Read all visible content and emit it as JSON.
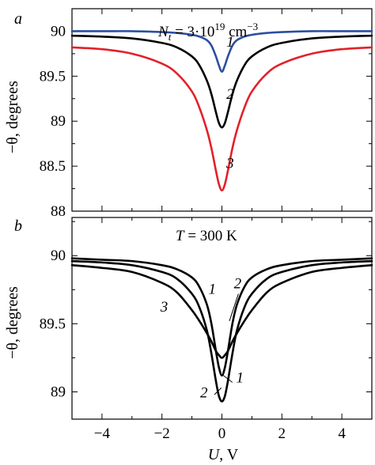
{
  "figure": {
    "shared_xlabel_italic": "U",
    "shared_xlabel_rest": ", V"
  },
  "chart_data": [
    {
      "type": "line",
      "panel_label": "a",
      "annotation": {
        "symbol": "N",
        "subscript": "t",
        "equals": " = 3·10",
        "exponent": "19",
        "unit": " cm",
        "unit_exponent": "−3"
      },
      "xlabel": "",
      "ylabel": "−θ, degrees",
      "xlim": [
        -5,
        5
      ],
      "ylim": [
        88,
        90.25
      ],
      "x_ticks": [
        -4,
        -2,
        0,
        2,
        4
      ],
      "y_ticks": [
        88,
        88.5,
        89,
        89.5,
        90
      ],
      "y_tick_labels": [
        "88",
        "88.5",
        "89",
        "89.5",
        "90"
      ],
      "show_x_tick_labels": false,
      "grid": false,
      "series": [
        {
          "name": "1",
          "color": "#2a4fa0",
          "x": [
            -5,
            -4,
            -3,
            -2,
            -1.5,
            -1,
            -0.75,
            -0.5,
            -0.35,
            -0.2,
            -0.1,
            0,
            0.1,
            0.2,
            0.35,
            0.5,
            0.75,
            1,
            1.5,
            2,
            3,
            4,
            5
          ],
          "y": [
            90.0,
            90.0,
            90.0,
            89.99,
            89.98,
            89.96,
            89.94,
            89.9,
            89.84,
            89.72,
            89.62,
            89.55,
            89.62,
            89.72,
            89.84,
            89.9,
            89.94,
            89.96,
            89.98,
            89.99,
            90.0,
            90.0,
            90.0
          ],
          "label_position": [
            0.15,
            89.83
          ]
        },
        {
          "name": "2",
          "color": "#000000",
          "x": [
            -5,
            -4,
            -3,
            -2,
            -1.5,
            -1,
            -0.75,
            -0.5,
            -0.35,
            -0.2,
            -0.1,
            0,
            0.1,
            0.2,
            0.35,
            0.5,
            0.75,
            1,
            1.5,
            2,
            3,
            4,
            5
          ],
          "y": [
            89.95,
            89.94,
            89.92,
            89.87,
            89.82,
            89.72,
            89.62,
            89.45,
            89.3,
            89.1,
            88.98,
            88.93,
            88.98,
            89.1,
            89.3,
            89.45,
            89.62,
            89.72,
            89.82,
            89.87,
            89.92,
            89.94,
            89.95
          ],
          "label_position": [
            0.15,
            89.25
          ]
        },
        {
          "name": "3",
          "color": "#e3202a",
          "x": [
            -5,
            -4,
            -3,
            -2,
            -1.5,
            -1,
            -0.75,
            -0.5,
            -0.35,
            -0.2,
            -0.1,
            0,
            0.1,
            0.2,
            0.35,
            0.5,
            0.75,
            1,
            1.5,
            2,
            3,
            4,
            5
          ],
          "y": [
            89.82,
            89.8,
            89.75,
            89.64,
            89.53,
            89.33,
            89.15,
            88.9,
            88.7,
            88.45,
            88.3,
            88.23,
            88.3,
            88.45,
            88.7,
            88.9,
            89.15,
            89.33,
            89.53,
            89.64,
            89.75,
            89.8,
            89.82
          ],
          "label_position": [
            0.15,
            88.48
          ]
        }
      ]
    },
    {
      "type": "line",
      "panel_label": "b",
      "annotation": {
        "symbol": "T",
        "equals": " = 300 K"
      },
      "xlabel": "U, V",
      "ylabel": "−θ, degrees",
      "xlim": [
        -5,
        5
      ],
      "ylim": [
        88.8,
        90.28
      ],
      "x_ticks": [
        -4,
        -2,
        0,
        2,
        4
      ],
      "x_tick_labels": [
        "−4",
        "−2",
        "0",
        "2",
        "4"
      ],
      "y_ticks": [
        89,
        89.5,
        90
      ],
      "y_tick_labels": [
        "89",
        "89.5",
        "90"
      ],
      "show_x_tick_labels": true,
      "grid": false,
      "series": [
        {
          "name": "1",
          "color": "#000000",
          "x": [
            -5,
            -4,
            -3,
            -2,
            -1.5,
            -1,
            -0.75,
            -0.5,
            -0.35,
            -0.2,
            -0.1,
            0,
            0.1,
            0.2,
            0.35,
            0.5,
            0.75,
            1,
            1.5,
            2,
            3,
            4,
            5
          ],
          "y": [
            89.98,
            89.97,
            89.96,
            89.93,
            89.9,
            89.84,
            89.77,
            89.64,
            89.5,
            89.3,
            89.18,
            89.12,
            89.18,
            89.3,
            89.5,
            89.64,
            89.77,
            89.84,
            89.9,
            89.93,
            89.96,
            89.97,
            89.98
          ],
          "label_position": [
            -0.45,
            89.72
          ]
        },
        {
          "name": "2",
          "color": "#000000",
          "x": [
            -5,
            -4,
            -3,
            -2,
            -1.5,
            -1,
            -0.75,
            -0.5,
            -0.35,
            -0.2,
            -0.1,
            0,
            0.1,
            0.2,
            0.35,
            0.5,
            0.75,
            1,
            1.5,
            2,
            3,
            4,
            5
          ],
          "y": [
            89.96,
            89.95,
            89.93,
            89.88,
            89.83,
            89.72,
            89.62,
            89.45,
            89.28,
            89.08,
            88.97,
            88.93,
            88.97,
            89.08,
            89.28,
            89.45,
            89.62,
            89.72,
            89.83,
            89.88,
            89.93,
            89.95,
            89.96
          ],
          "label_position": [
            0.4,
            89.76
          ]
        },
        {
          "name": "3",
          "color": "#000000",
          "x": [
            -5,
            -4,
            -3,
            -2,
            -1.5,
            -1,
            -0.75,
            -0.5,
            -0.35,
            -0.2,
            -0.1,
            0,
            0.1,
            0.2,
            0.35,
            0.5,
            0.75,
            1,
            1.5,
            2,
            3,
            4,
            5
          ],
          "y": [
            89.93,
            89.91,
            89.88,
            89.8,
            89.73,
            89.6,
            89.52,
            89.43,
            89.37,
            89.3,
            89.27,
            89.25,
            89.27,
            89.3,
            89.37,
            89.43,
            89.52,
            89.6,
            89.73,
            89.8,
            89.88,
            89.91,
            89.93
          ],
          "label_position": [
            -2.05,
            89.59
          ]
        }
      ],
      "extra_labels": [
        {
          "name": "2",
          "label_position": [
            -0.6,
            88.96
          ]
        },
        {
          "name": "1",
          "label_position": [
            0.6,
            89.07
          ]
        }
      ]
    }
  ]
}
